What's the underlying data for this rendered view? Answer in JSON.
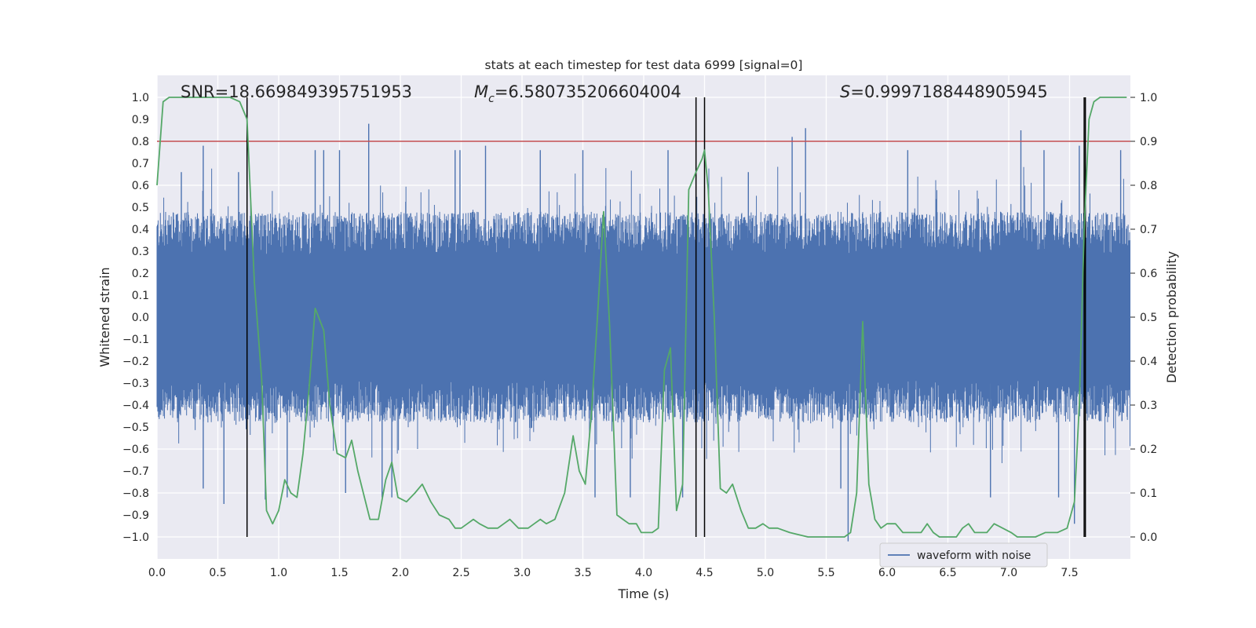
{
  "chart_data": {
    "type": "line",
    "title": "stats at each timestep for test data 6999 [signal=0]",
    "xlabel": "Time (s)",
    "ylabel": "Whitened strain",
    "y2label": "Detection probability",
    "xlim": [
      0.0,
      8.0
    ],
    "ylim": [
      -1.1,
      1.1
    ],
    "y2lim": [
      -0.05,
      1.05
    ],
    "x_ticks": [
      "0.0",
      "0.5",
      "1.0",
      "1.5",
      "2.0",
      "2.5",
      "3.0",
      "3.5",
      "4.0",
      "4.5",
      "5.0",
      "5.5",
      "6.0",
      "6.5",
      "7.0",
      "7.5"
    ],
    "y_ticks": [
      "1.0",
      "0.9",
      "0.8",
      "0.7",
      "0.6",
      "0.5",
      "0.4",
      "0.3",
      "0.2",
      "0.1",
      "0.0",
      "-0.1",
      "-0.2",
      "-0.3",
      "-0.4",
      "-0.5",
      "-0.6",
      "-0.7",
      "-0.8",
      "-0.9",
      "-1.0"
    ],
    "y2_ticks": [
      "1.0",
      "0.9",
      "0.8",
      "0.7",
      "0.6",
      "0.5",
      "0.4",
      "0.3",
      "0.2",
      "0.1",
      "0.0"
    ],
    "annotations": {
      "snr": "SNR=18.669849395751953",
      "mc_prefix": "M",
      "mc_sub": "c",
      "mc_value": "=6.580735206604004",
      "s_prefix": "S",
      "s_value": "=0.9997188448905945"
    },
    "threshold": {
      "y2": 0.9,
      "color": "#c44e52"
    },
    "vlines_x": [
      0.74,
      4.43,
      4.5,
      7.62,
      7.63
    ],
    "legend": {
      "label": "waveform with noise",
      "location": "lower-right"
    },
    "waveform": {
      "name": "waveform with noise",
      "color": "#4c72b0",
      "duration_s": 8.0,
      "typical_peak": 0.35,
      "spikes": [
        {
          "t": 0.2,
          "v": 0.66
        },
        {
          "t": 0.38,
          "v": 0.78
        },
        {
          "t": 0.38,
          "v": -0.78
        },
        {
          "t": 0.55,
          "v": -0.85
        },
        {
          "t": 0.67,
          "v": 0.66
        },
        {
          "t": 0.89,
          "v": -0.83
        },
        {
          "t": 1.07,
          "v": -0.82
        },
        {
          "t": 1.3,
          "v": 0.76
        },
        {
          "t": 1.37,
          "v": 0.76
        },
        {
          "t": 1.5,
          "v": 0.76
        },
        {
          "t": 1.55,
          "v": -0.8
        },
        {
          "t": 1.74,
          "v": 0.88
        },
        {
          "t": 1.85,
          "v": -0.82
        },
        {
          "t": 1.93,
          "v": -0.82
        },
        {
          "t": 2.45,
          "v": 0.76
        },
        {
          "t": 2.49,
          "v": 0.76
        },
        {
          "t": 2.7,
          "v": 0.78
        },
        {
          "t": 3.15,
          "v": 0.76
        },
        {
          "t": 3.5,
          "v": 0.76
        },
        {
          "t": 3.6,
          "v": -0.82
        },
        {
          "t": 3.89,
          "v": -0.82
        },
        {
          "t": 4.2,
          "v": 0.76
        },
        {
          "t": 4.32,
          "v": -0.82
        },
        {
          "t": 4.86,
          "v": 0.66
        },
        {
          "t": 5.22,
          "v": 0.82
        },
        {
          "t": 5.33,
          "v": 0.86
        },
        {
          "t": 5.62,
          "v": -0.78
        },
        {
          "t": 5.68,
          "v": -1.02
        },
        {
          "t": 6.17,
          "v": 0.76
        },
        {
          "t": 6.85,
          "v": -0.82
        },
        {
          "t": 7.1,
          "v": 0.85
        },
        {
          "t": 7.29,
          "v": 0.76
        },
        {
          "t": 7.41,
          "v": -0.82
        },
        {
          "t": 7.54,
          "v": -0.94
        },
        {
          "t": 7.58,
          "v": 0.78
        },
        {
          "t": 7.92,
          "v": 0.76
        }
      ]
    },
    "probability": {
      "name": "detection probability",
      "color": "#55a868",
      "x": [
        0.0,
        0.05,
        0.1,
        0.15,
        0.2,
        0.3,
        0.4,
        0.5,
        0.6,
        0.68,
        0.74,
        0.8,
        0.86,
        0.9,
        0.95,
        1.0,
        1.05,
        1.1,
        1.15,
        1.2,
        1.25,
        1.3,
        1.37,
        1.42,
        1.48,
        1.55,
        1.6,
        1.65,
        1.75,
        1.82,
        1.88,
        1.93,
        1.98,
        2.05,
        2.12,
        2.18,
        2.25,
        2.32,
        2.4,
        2.45,
        2.5,
        2.55,
        2.6,
        2.65,
        2.72,
        2.8,
        2.85,
        2.9,
        2.97,
        3.05,
        3.1,
        3.15,
        3.2,
        3.27,
        3.35,
        3.42,
        3.47,
        3.52,
        3.57,
        3.62,
        3.67,
        3.72,
        3.78,
        3.83,
        3.88,
        3.94,
        3.98,
        4.02,
        4.07,
        4.12,
        4.17,
        4.22,
        4.27,
        4.32,
        4.37,
        4.43,
        4.48,
        4.5,
        4.53,
        4.58,
        4.63,
        4.68,
        4.73,
        4.8,
        4.86,
        4.92,
        4.98,
        5.03,
        5.1,
        5.2,
        5.35,
        5.5,
        5.6,
        5.65,
        5.7,
        5.75,
        5.8,
        5.85,
        5.9,
        5.95,
        6.0,
        6.07,
        6.13,
        6.2,
        6.28,
        6.33,
        6.38,
        6.43,
        6.5,
        6.57,
        6.62,
        6.67,
        6.72,
        6.77,
        6.82,
        6.88,
        6.95,
        7.02,
        7.07,
        7.1,
        7.15,
        7.22,
        7.3,
        7.4,
        7.48,
        7.54,
        7.58,
        7.62,
        7.66,
        7.7,
        7.75,
        7.8,
        7.9,
        7.97
      ],
      "y": [
        0.8,
        0.99,
        1.0,
        1.0,
        1.0,
        1.0,
        1.0,
        1.0,
        1.0,
        0.99,
        0.95,
        0.58,
        0.36,
        0.06,
        0.03,
        0.06,
        0.13,
        0.1,
        0.09,
        0.19,
        0.34,
        0.52,
        0.47,
        0.3,
        0.19,
        0.18,
        0.22,
        0.15,
        0.04,
        0.04,
        0.13,
        0.17,
        0.09,
        0.08,
        0.1,
        0.12,
        0.08,
        0.05,
        0.04,
        0.02,
        0.02,
        0.03,
        0.04,
        0.03,
        0.02,
        0.02,
        0.03,
        0.04,
        0.02,
        0.02,
        0.03,
        0.04,
        0.03,
        0.04,
        0.1,
        0.23,
        0.15,
        0.12,
        0.28,
        0.5,
        0.74,
        0.48,
        0.05,
        0.04,
        0.03,
        0.03,
        0.01,
        0.01,
        0.01,
        0.02,
        0.38,
        0.43,
        0.06,
        0.12,
        0.79,
        0.83,
        0.86,
        0.88,
        0.79,
        0.5,
        0.11,
        0.1,
        0.12,
        0.06,
        0.02,
        0.02,
        0.03,
        0.02,
        0.02,
        0.01,
        0.0,
        0.0,
        0.0,
        0.0,
        0.01,
        0.1,
        0.49,
        0.12,
        0.04,
        0.02,
        0.03,
        0.03,
        0.01,
        0.01,
        0.01,
        0.03,
        0.01,
        0.0,
        0.0,
        0.0,
        0.02,
        0.03,
        0.01,
        0.01,
        0.01,
        0.03,
        0.02,
        0.01,
        0.0,
        0.0,
        0.0,
        0.0,
        0.01,
        0.01,
        0.02,
        0.08,
        0.3,
        0.7,
        0.95,
        0.99,
        1.0,
        1.0,
        1.0,
        1.0
      ]
    }
  }
}
